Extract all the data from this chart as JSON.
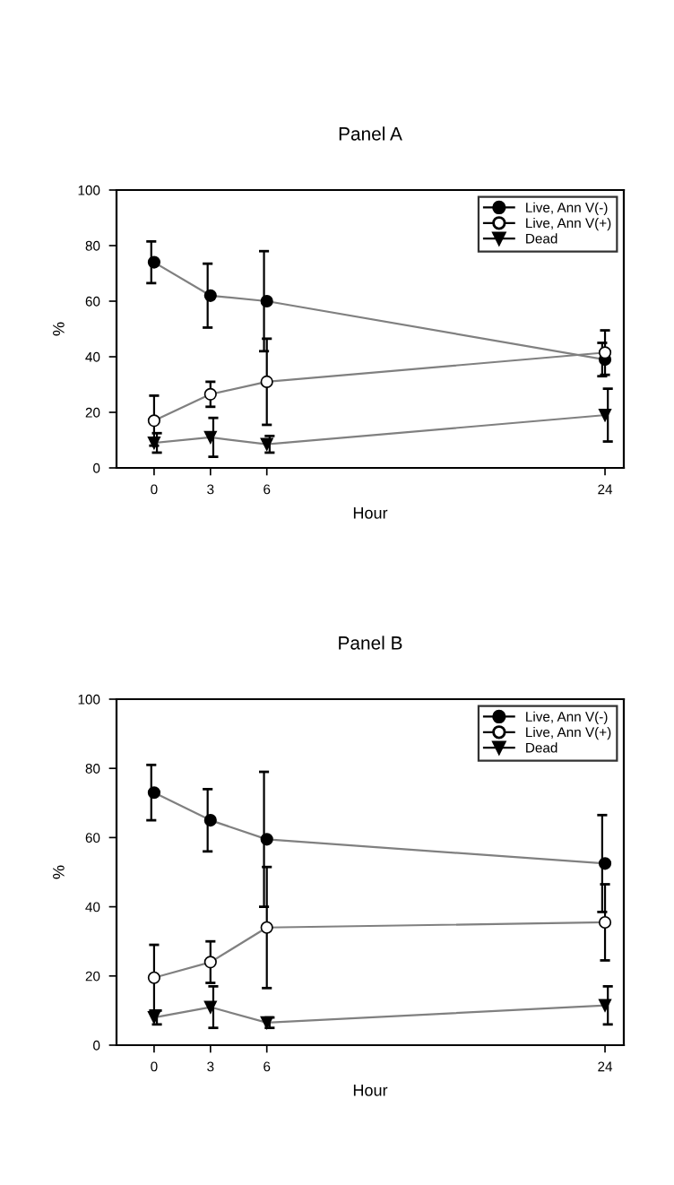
{
  "chart_data": [
    {
      "type": "line",
      "title": "Panel A",
      "xlabel": "Hour",
      "ylabel": "%",
      "x": [
        0,
        3,
        6,
        24
      ],
      "xlim": [
        -2,
        25
      ],
      "xticks": [
        0,
        3,
        6,
        24
      ],
      "ylim": [
        0,
        100
      ],
      "yticks": [
        0,
        20,
        40,
        60,
        80,
        100
      ],
      "grid": false,
      "legend": "top right",
      "line_style": "solid",
      "series": [
        {
          "name": "Live, Ann V(-)",
          "color": "#000000",
          "marker": "circle",
          "values": [
            74,
            62,
            60,
            39
          ],
          "errors": [
            7.5,
            11.5,
            18,
            6
          ]
        },
        {
          "name": "Live, Ann V(+)",
          "color": "#ffffff",
          "marker": "circle",
          "values": [
            17,
            26.5,
            31,
            41.5
          ],
          "errors": [
            9,
            4.5,
            15.5,
            8
          ]
        },
        {
          "name": "Dead",
          "color": "#000000",
          "marker": "triangle",
          "values": [
            9,
            11,
            8.5,
            19
          ],
          "errors": [
            3.5,
            7,
            3,
            9.5
          ]
        }
      ]
    },
    {
      "type": "line",
      "title": "Panel B",
      "xlabel": "Hour",
      "ylabel": "%",
      "x": [
        0,
        3,
        6,
        24
      ],
      "xlim": [
        -2,
        25
      ],
      "xticks": [
        0,
        3,
        6,
        24
      ],
      "ylim": [
        0,
        100
      ],
      "yticks": [
        0,
        20,
        40,
        60,
        80,
        100
      ],
      "grid": false,
      "legend": "top right",
      "line_style": "solid",
      "series": [
        {
          "name": "Live, Ann V(-)",
          "color": "#000000",
          "marker": "circle",
          "values": [
            73,
            65,
            59.5,
            52.5
          ],
          "errors": [
            8,
            9,
            19.5,
            14
          ]
        },
        {
          "name": "Live, Ann V(+)",
          "color": "#ffffff",
          "marker": "circle",
          "values": [
            19.5,
            24,
            34,
            35.5
          ],
          "errors": [
            9.5,
            6,
            17.5,
            11
          ]
        },
        {
          "name": "Dead",
          "color": "#000000",
          "marker": "triangle",
          "values": [
            8,
            11,
            6.5,
            11.5
          ],
          "errors": [
            2,
            6,
            1.5,
            5.5
          ]
        }
      ]
    }
  ]
}
